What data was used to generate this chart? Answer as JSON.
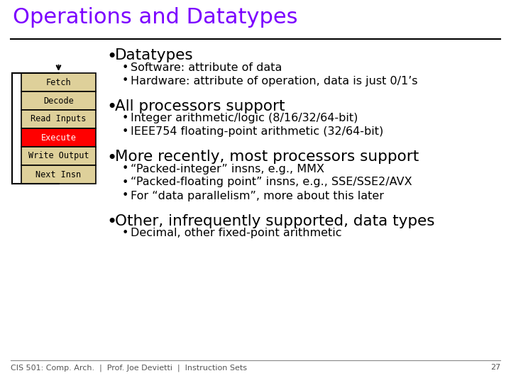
{
  "title": "Operations and Datatypes",
  "title_color": "#7B00FF",
  "bg_color": "#FFFFFF",
  "box_labels": [
    "Fetch",
    "Decode",
    "Read Inputs",
    "Execute",
    "Write Output",
    "Next Insn"
  ],
  "box_colors": [
    "#DED09A",
    "#DED09A",
    "#DED09A",
    "#FF0000",
    "#DED09A",
    "#DED09A"
  ],
  "box_text_colors": [
    "#000000",
    "#000000",
    "#000000",
    "#FFFFFF",
    "#000000",
    "#000000"
  ],
  "bullet1_main": "Datatypes",
  "bullet1_sub": [
    "Software: attribute of data",
    "Hardware: attribute of operation, data is just 0/1’s"
  ],
  "bullet2_main": "All processors support",
  "bullet2_sub": [
    "Integer arithmetic/logic (8/16/32/64-bit)",
    "IEEE754 floating-point arithmetic (32/64-bit)"
  ],
  "bullet3_main": "More recently, most processors support",
  "bullet3_sub": [
    "“Packed-integer” insns, e.g., MMX",
    "“Packed-floating point” insns, e.g., SSE/SSE2/AVX",
    "For “data parallelism”, more about this later"
  ],
  "bullet4_main": "Other, infrequently supported, data types",
  "bullet4_sub": [
    "Decimal, other fixed-point arithmetic"
  ],
  "footer": "CIS 501: Comp. Arch.  |  Prof. Joe Devietti  |  Instruction Sets",
  "footer_pagenum": "27"
}
